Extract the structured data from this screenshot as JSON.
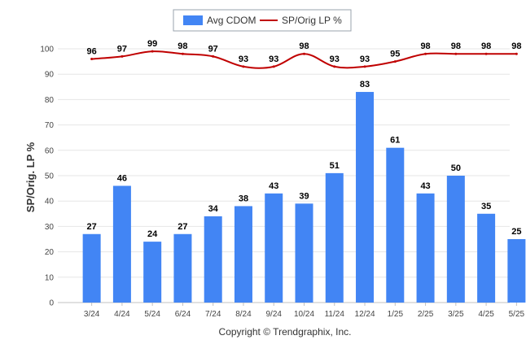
{
  "chart_data": {
    "type": "bar",
    "categories": [
      "3/24",
      "4/24",
      "5/24",
      "6/24",
      "7/24",
      "8/24",
      "9/24",
      "10/24",
      "11/24",
      "12/24",
      "1/25",
      "2/25",
      "3/25",
      "4/25",
      "5/25"
    ],
    "series": [
      {
        "name": "Avg CDOM",
        "type": "bar",
        "color": "#4285f4",
        "values": [
          27,
          46,
          24,
          27,
          34,
          38,
          43,
          39,
          51,
          83,
          61,
          43,
          50,
          35,
          25
        ]
      },
      {
        "name": "SP/Orig LP %",
        "type": "line",
        "color": "#c00000",
        "values": [
          96,
          97,
          99,
          98,
          97,
          93,
          93,
          98,
          93,
          93,
          95,
          98,
          98,
          98,
          98
        ]
      }
    ],
    "ylabel": "SP/Orig. LP %",
    "ylim": [
      0,
      100
    ],
    "yticks": [
      0,
      10,
      20,
      30,
      40,
      50,
      60,
      70,
      80,
      90,
      100
    ],
    "grid": true,
    "legend_position": "top-center",
    "credit": "Copyright © Trendgraphix, Inc."
  }
}
